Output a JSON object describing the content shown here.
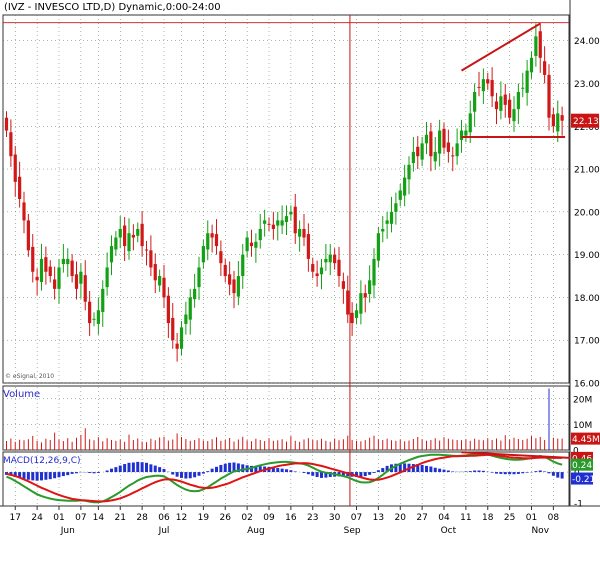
{
  "header": {
    "title": "(IVZ - INVESCO LTD,D) Dynamic,0:00-24:00"
  },
  "panels": {
    "volume_label": "Volume",
    "macd_label": "MACD(12,26,9,C)",
    "copyright": "© eSignal, 2010"
  },
  "colors": {
    "up": "#14a014",
    "down": "#d01818",
    "grid": "#4a7a4a",
    "volume": "#d01818",
    "volume_up": "#2a2ad0",
    "macd_line": "#2a9a2a",
    "signal_line": "#e01414",
    "histogram": "#2030d0",
    "annotation": "#c81414",
    "marker": "#c81414"
  },
  "chart_data": [
    {
      "type": "candlestick",
      "panel": "price",
      "ylim": [
        16.0,
        24.6
      ],
      "y_ticks": [
        "16.00",
        "17.00",
        "18.00",
        "19.00",
        "20.00",
        "21.00",
        "22.00",
        "23.00",
        "24.00"
      ],
      "last_price": "22.13",
      "x_tick_labels": [
        "17",
        "24",
        "01",
        "07",
        "14",
        "21",
        "28",
        "06",
        "12",
        "19",
        "26",
        "02",
        "09",
        "16",
        "23",
        "30",
        "07",
        "13",
        "20",
        "27",
        "04",
        "11",
        "18",
        "25",
        "01",
        "08"
      ],
      "x_month_labels": [
        "Jun",
        "Jul",
        "Aug",
        "Sep",
        "Oct",
        "Nov"
      ],
      "closes": [
        21.9,
        21.3,
        20.7,
        20.3,
        19.8,
        19.1,
        18.6,
        18.4,
        18.9,
        18.6,
        18.5,
        18.2,
        18.7,
        18.9,
        18.9,
        18.5,
        18.2,
        18.6,
        17.9,
        17.4,
        17.5,
        17.7,
        18.2,
        18.7,
        19.2,
        19.4,
        19.6,
        19.2,
        19.5,
        19.4,
        19.6,
        19.2,
        19.1,
        18.7,
        18.4,
        18.5,
        18.0,
        17.4,
        17.0,
        16.8,
        17.3,
        17.6,
        18.0,
        18.2,
        18.7,
        19.2,
        19.5,
        19.4,
        19.2,
        18.8,
        18.5,
        18.3,
        18.1,
        18.5,
        19.0,
        19.4,
        19.2,
        19.3,
        19.6,
        19.8,
        19.7,
        19.6,
        19.8,
        19.8,
        19.9,
        20.0,
        19.5,
        19.6,
        19.4,
        18.9,
        18.6,
        18.5,
        18.7,
        18.9,
        19.0,
        18.8,
        18.5,
        18.2,
        17.6,
        17.4,
        17.7,
        18.1,
        18.0,
        18.4,
        18.9,
        19.5,
        19.6,
        19.8,
        20.0,
        20.2,
        20.5,
        20.8,
        21.1,
        21.4,
        21.3,
        21.6,
        21.8,
        21.3,
        21.4,
        21.9,
        21.5,
        21.4,
        21.3,
        21.6,
        21.9,
        21.9,
        22.3,
        22.8,
        22.9,
        23.1,
        23.0,
        22.7,
        22.4,
        22.7,
        22.5,
        22.2,
        22.4,
        22.8,
        22.9,
        23.3,
        23.6,
        24.1,
        23.6,
        23.2,
        22.2,
        22.0,
        22.3,
        22.13
      ],
      "highlight_date": "31 Aug",
      "annotations": {
        "rising_trendline": {
          "from": [
            "Oct 11",
            23.3
          ],
          "to": [
            "Nov 3",
            24.4
          ]
        },
        "support_line": {
          "from": [
            "Oct 11",
            21.75
          ],
          "to": [
            "Nov 10",
            21.75
          ]
        }
      }
    },
    {
      "type": "bar",
      "panel": "volume",
      "series": [
        {
          "name": "Volume"
        }
      ],
      "ylim": [
        0,
        25
      ],
      "y_ticks": [
        "0",
        "10M",
        "20M"
      ],
      "last_value": "4.45M",
      "values": [
        3.5,
        4.5,
        3.2,
        4.0,
        3.8,
        4.2,
        5.5,
        3.6,
        3.0,
        4.4,
        3.9,
        6.8,
        4.1,
        3.5,
        4.6,
        3.2,
        4.8,
        5.9,
        8.5,
        4.2,
        3.8,
        5.0,
        3.4,
        4.6,
        3.9,
        3.6,
        4.1,
        3.2,
        6.0,
        3.9,
        4.5,
        3.3,
        3.1,
        4.4,
        3.8,
        4.9,
        5.2,
        3.7,
        4.1,
        6.5,
        5.1,
        4.3,
        3.6,
        3.9,
        4.6,
        3.7,
        3.5,
        4.2,
        5.0,
        3.6,
        3.9,
        4.7,
        3.3,
        4.1,
        5.2,
        3.8,
        3.4,
        4.4,
        3.9,
        3.5,
        4.6,
        3.6,
        3.8,
        4.2,
        3.3,
        5.4,
        3.6,
        3.2,
        4.1,
        4.6,
        3.9,
        3.8,
        4.4,
        3.6,
        3.2,
        4.5,
        3.8,
        4.2,
        5.6,
        3.9,
        3.6,
        3.4,
        3.9,
        4.8,
        5.6,
        4.2,
        3.9,
        4.4,
        3.8,
        3.6,
        4.1,
        3.4,
        3.7,
        4.3,
        5.1,
        4.2,
        3.6,
        3.9,
        4.6,
        3.7,
        5.0,
        4.4,
        4.1,
        3.9,
        3.8,
        4.2,
        3.6,
        4.4,
        4.0,
        3.8,
        4.6,
        3.9,
        4.5,
        3.7,
        5.8,
        4.1,
        4.8,
        4.3,
        3.9,
        4.4,
        5.4,
        4.6,
        5.1,
        3.9,
        24.0,
        4.8,
        4.45,
        4.45
      ]
    },
    {
      "type": "line",
      "panel": "macd",
      "ylim": [
        -1.1,
        0.65
      ],
      "y_ticks": [
        "-1",
        "0"
      ],
      "series": [
        {
          "name": "MACD",
          "last_value": "0.24",
          "values": [
            -0.15,
            -0.21,
            -0.29,
            -0.37,
            -0.46,
            -0.55,
            -0.64,
            -0.72,
            -0.78,
            -0.82,
            -0.86,
            -0.89,
            -0.91,
            -0.92,
            -0.93,
            -0.93,
            -0.93,
            -0.92,
            -0.93,
            -0.96,
            -0.98,
            -0.98,
            -0.95,
            -0.89,
            -0.81,
            -0.73,
            -0.64,
            -0.54,
            -0.44,
            -0.36,
            -0.27,
            -0.21,
            -0.16,
            -0.14,
            -0.12,
            -0.12,
            -0.14,
            -0.22,
            -0.32,
            -0.42,
            -0.5,
            -0.57,
            -0.61,
            -0.62,
            -0.61,
            -0.56,
            -0.49,
            -0.4,
            -0.31,
            -0.21,
            -0.13,
            -0.05,
            0.02,
            0.05,
            0.08,
            0.1,
            0.13,
            0.18,
            0.22,
            0.25,
            0.28,
            0.3,
            0.32,
            0.33,
            0.33,
            0.32,
            0.3,
            0.28,
            0.26,
            0.21,
            0.14,
            0.07,
            0.01,
            -0.02,
            -0.04,
            -0.07,
            -0.1,
            -0.13,
            -0.17,
            -0.23,
            -0.29,
            -0.33,
            -0.34,
            -0.33,
            -0.28,
            -0.19,
            -0.09,
            0.02,
            0.12,
            0.2,
            0.27,
            0.33,
            0.39,
            0.44,
            0.49,
            0.52,
            0.54,
            0.56,
            0.56,
            0.56,
            0.55,
            0.54,
            0.53,
            0.52,
            0.53,
            0.54,
            0.56,
            0.58,
            0.59,
            0.59,
            0.57,
            0.53,
            0.49,
            0.46,
            0.43,
            0.41,
            0.4,
            0.4,
            0.41,
            0.43,
            0.45,
            0.49,
            0.52,
            0.49,
            0.42,
            0.34,
            0.28,
            0.24
          ]
        },
        {
          "name": "Signal",
          "last_value": "0.46",
          "values": [
            -0.06,
            -0.09,
            -0.13,
            -0.18,
            -0.24,
            -0.3,
            -0.37,
            -0.44,
            -0.51,
            -0.57,
            -0.63,
            -0.69,
            -0.74,
            -0.79,
            -0.83,
            -0.87,
            -0.89,
            -0.91,
            -0.92,
            -0.93,
            -0.94,
            -0.95,
            -0.95,
            -0.94,
            -0.92,
            -0.89,
            -0.85,
            -0.8,
            -0.74,
            -0.67,
            -0.6,
            -0.53,
            -0.46,
            -0.39,
            -0.33,
            -0.28,
            -0.24,
            -0.23,
            -0.24,
            -0.27,
            -0.31,
            -0.36,
            -0.41,
            -0.45,
            -0.49,
            -0.51,
            -0.52,
            -0.51,
            -0.48,
            -0.44,
            -0.4,
            -0.35,
            -0.29,
            -0.23,
            -0.17,
            -0.12,
            -0.07,
            -0.02,
            0.03,
            0.07,
            0.11,
            0.15,
            0.19,
            0.22,
            0.24,
            0.26,
            0.28,
            0.28,
            0.29,
            0.28,
            0.26,
            0.23,
            0.2,
            0.16,
            0.12,
            0.08,
            0.04,
            0.0,
            -0.04,
            -0.08,
            -0.13,
            -0.17,
            -0.21,
            -0.24,
            -0.25,
            -0.25,
            -0.22,
            -0.18,
            -0.13,
            -0.07,
            -0.01,
            0.05,
            0.12,
            0.18,
            0.23,
            0.29,
            0.34,
            0.38,
            0.42,
            0.45,
            0.47,
            0.49,
            0.51,
            0.51,
            0.52,
            0.52,
            0.53,
            0.53,
            0.54,
            0.55,
            0.56,
            0.55,
            0.54,
            0.52,
            0.5,
            0.48,
            0.47,
            0.46,
            0.45,
            0.45,
            0.45,
            0.46,
            0.47,
            0.47,
            0.47,
            0.46,
            0.46,
            0.46
          ]
        }
      ],
      "histogram": {
        "name": "Histogram",
        "last_value": "-0.21",
        "values": [
          -0.09,
          -0.12,
          -0.16,
          -0.19,
          -0.22,
          -0.25,
          -0.27,
          -0.28,
          -0.27,
          -0.25,
          -0.23,
          -0.2,
          -0.17,
          -0.13,
          -0.1,
          -0.06,
          -0.04,
          -0.01,
          -0.01,
          -0.03,
          -0.04,
          -0.03,
          0.0,
          0.05,
          0.11,
          0.16,
          0.21,
          0.26,
          0.3,
          0.31,
          0.33,
          0.32,
          0.3,
          0.25,
          0.21,
          0.16,
          0.1,
          0.01,
          -0.08,
          -0.15,
          -0.19,
          -0.21,
          -0.2,
          -0.17,
          -0.12,
          -0.05,
          0.03,
          0.11,
          0.17,
          0.23,
          0.27,
          0.3,
          0.31,
          0.28,
          0.25,
          0.22,
          0.2,
          0.2,
          0.19,
          0.18,
          0.17,
          0.15,
          0.13,
          0.11,
          0.09,
          0.06,
          0.02,
          0.0,
          -0.03,
          -0.07,
          -0.12,
          -0.16,
          -0.19,
          -0.18,
          -0.16,
          -0.15,
          -0.14,
          -0.13,
          -0.13,
          -0.15,
          -0.16,
          -0.16,
          -0.13,
          -0.09,
          -0.03,
          0.06,
          0.13,
          0.2,
          0.25,
          0.27,
          0.28,
          0.28,
          0.27,
          0.26,
          0.26,
          0.23,
          0.2,
          0.18,
          0.14,
          0.11,
          0.08,
          0.05,
          0.02,
          0.01,
          0.01,
          0.02,
          0.03,
          0.05,
          0.05,
          0.04,
          0.01,
          -0.02,
          -0.05,
          -0.06,
          -0.07,
          -0.07,
          -0.07,
          -0.06,
          -0.04,
          -0.02,
          -0.01,
          0.03,
          0.05,
          0.02,
          -0.04,
          -0.12,
          -0.18,
          -0.21
        ]
      },
      "annotations": {
        "divergence_line": {
          "from": [
            "Oct 11",
            0.64
          ],
          "to": [
            "Nov 10",
            0.46
          ]
        }
      }
    }
  ]
}
